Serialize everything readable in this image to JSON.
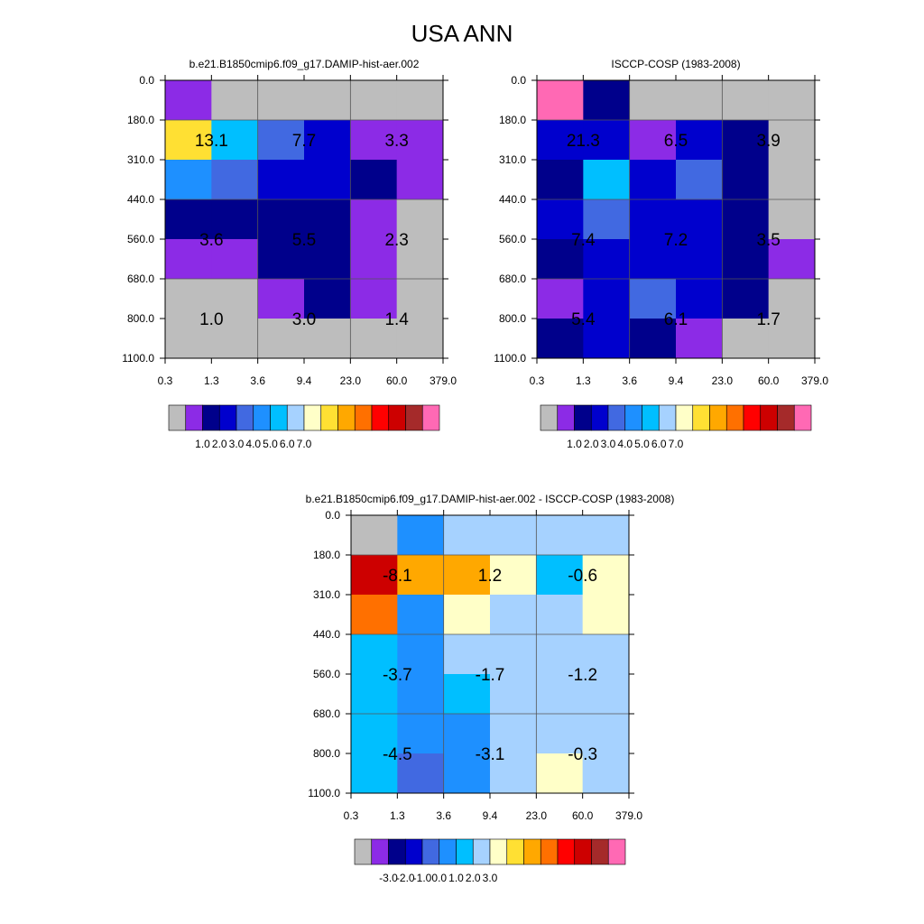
{
  "title": "USA ANN",
  "palettes": {
    "abs": [
      "#bdbdbd",
      "#8c2be6",
      "#00008b",
      "#0000cd",
      "#4169e1",
      "#1e90ff",
      "#00bfff",
      "#a6d2ff",
      "#ffffc8",
      "#ffe033",
      "#ffa800",
      "#ff7000",
      "#ff0000",
      "#cd0000",
      "#a52a2a",
      "#ff69b4"
    ],
    "diff": [
      "#bdbdbd",
      "#8c2be6",
      "#00008b",
      "#0000cd",
      "#4169e1",
      "#1e90ff",
      "#00bfff",
      "#a6d2ff",
      "#ffffc8",
      "#ffe033",
      "#ffa800",
      "#ff7000",
      "#ff0000",
      "#cd0000",
      "#a52a2a",
      "#ff69b4"
    ]
  },
  "chart_data": [
    {
      "type": "heatmap",
      "title": "b.e21.B1850cmip6.f09_g17.DAMIP-hist-aer.002",
      "x_ticks": [
        "0.3",
        "1.3",
        "3.6",
        "9.4",
        "23.0",
        "60.0",
        "379.0"
      ],
      "y_ticks": [
        "0.0",
        "180.0",
        "310.0",
        "440.0",
        "560.0",
        "680.0",
        "800.0",
        "1100.0"
      ],
      "colors": [
        [
          1,
          0,
          0,
          0,
          0,
          0
        ],
        [
          9,
          6,
          4,
          3,
          1,
          1
        ],
        [
          5,
          4,
          3,
          3,
          2,
          1
        ],
        [
          2,
          2,
          2,
          2,
          1,
          0
        ],
        [
          1,
          1,
          2,
          2,
          1,
          0
        ],
        [
          0,
          0,
          1,
          2,
          1,
          0
        ],
        [
          0,
          0,
          0,
          0,
          0,
          0
        ]
      ],
      "labels": [
        "13.1",
        "7.7",
        "3.3",
        "3.6",
        "5.5",
        "2.3",
        "1.0",
        "3.0",
        "1.4"
      ],
      "legend_labels": [
        "1.0",
        "2.0",
        "3.0",
        "4.0",
        "5.0",
        "6.0",
        "7.0"
      ],
      "palette": "abs"
    },
    {
      "type": "heatmap",
      "title": "ISCCP-COSP (1983-2008)",
      "x_ticks": [
        "0.3",
        "1.3",
        "3.6",
        "9.4",
        "23.0",
        "60.0",
        "379.0"
      ],
      "y_ticks": [
        "0.0",
        "180.0",
        "310.0",
        "440.0",
        "560.0",
        "680.0",
        "800.0",
        "1100.0"
      ],
      "colors": [
        [
          15,
          2,
          0,
          0,
          0,
          0
        ],
        [
          3,
          3,
          1,
          3,
          2,
          0
        ],
        [
          2,
          6,
          3,
          4,
          2,
          0
        ],
        [
          3,
          4,
          3,
          3,
          2,
          0
        ],
        [
          2,
          3,
          3,
          3,
          2,
          1
        ],
        [
          1,
          3,
          4,
          3,
          2,
          0
        ],
        [
          2,
          3,
          2,
          1,
          0,
          0
        ]
      ],
      "labels": [
        "21.3",
        "6.5",
        "3.9",
        "7.4",
        "7.2",
        "3.5",
        "5.4",
        "6.1",
        "1.7"
      ],
      "legend_labels": [
        "1.0",
        "2.0",
        "3.0",
        "4.0",
        "5.0",
        "6.0",
        "7.0"
      ],
      "palette": "abs"
    },
    {
      "type": "heatmap",
      "title": "b.e21.B1850cmip6.f09_g17.DAMIP-hist-aer.002 - ISCCP-COSP (1983-2008)",
      "x_ticks": [
        "0.3",
        "1.3",
        "3.6",
        "9.4",
        "23.0",
        "60.0",
        "379.0"
      ],
      "y_ticks": [
        "0.0",
        "180.0",
        "310.0",
        "440.0",
        "560.0",
        "680.0",
        "800.0",
        "1100.0"
      ],
      "colors": [
        [
          0,
          5,
          7,
          7,
          7,
          7
        ],
        [
          13,
          10,
          10,
          8,
          6,
          8
        ],
        [
          11,
          5,
          8,
          7,
          7,
          8
        ],
        [
          6,
          5,
          7,
          7,
          7,
          7
        ],
        [
          6,
          5,
          6,
          7,
          7,
          7
        ],
        [
          6,
          5,
          5,
          7,
          7,
          7
        ],
        [
          6,
          4,
          5,
          7,
          8,
          7
        ]
      ],
      "labels": [
        "-8.1",
        "1.2",
        "-0.6",
        "-3.7",
        "-1.7",
        "-1.2",
        "-4.5",
        "-3.1",
        "-0.3"
      ],
      "legend_labels": [
        "-3.0",
        "-2.0",
        "-1.0",
        "0.0",
        "1.0",
        "2.0",
        "3.0"
      ],
      "palette": "diff"
    }
  ]
}
